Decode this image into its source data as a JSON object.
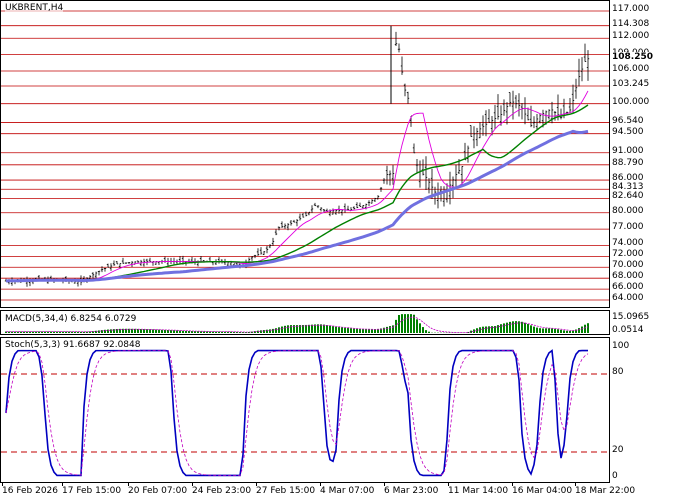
{
  "main_title": "UKBRENT,H4",
  "macd_title": "MACD(5,34,4) 6.8254 6.0729",
  "stoch_title": "Stoch(5,3,3) 91.6687 92.0848",
  "colors": {
    "level_line": "#c00000",
    "price_bars": "#000000",
    "ma_fast": "#e000e0",
    "ma_mid": "#008000",
    "ma_slow": "#7070e0",
    "macd_hist": "#008000",
    "macd_signal": "#c000c0",
    "stoch_main": "#0000c0",
    "stoch_signal": "#c000c0",
    "stoch_level": "#c00000",
    "arrow_up": "#2a8a2a",
    "arrow_down": "#a03010"
  },
  "price_levels": [
    "117.000",
    "114.308",
    "112.000",
    "109.000",
    "106.000",
    "103.245",
    "100.000",
    "96.540",
    "94.500",
    "91.000",
    "88.790",
    "86.000",
    "84.313",
    "82.640",
    "80.000",
    "77.000",
    "74.000",
    "72.000",
    "70.000",
    "68.000",
    "66.000",
    "64.000"
  ],
  "current_price": "108.250",
  "macd_axis": {
    "top": "15.0965",
    "bottom": "0.0514"
  },
  "stoch_levels": [
    "100",
    "80",
    "20",
    "0"
  ],
  "time_labels": [
    "16 Feb 2026",
    "17 Feb 15:00",
    "20 Feb 07:00",
    "24 Feb 23:00",
    "27 Feb 15:00",
    "4 Mar 07:00",
    "6 Mar 23:00",
    "11 Mar 14:00",
    "16 Mar 04:00",
    "18 Mar 22:00"
  ],
  "forecast": {
    "up_icon": "up-zigzag-arrow-icon",
    "down_icon": "down-zigzag-arrow-icon",
    "question": "?"
  }
}
